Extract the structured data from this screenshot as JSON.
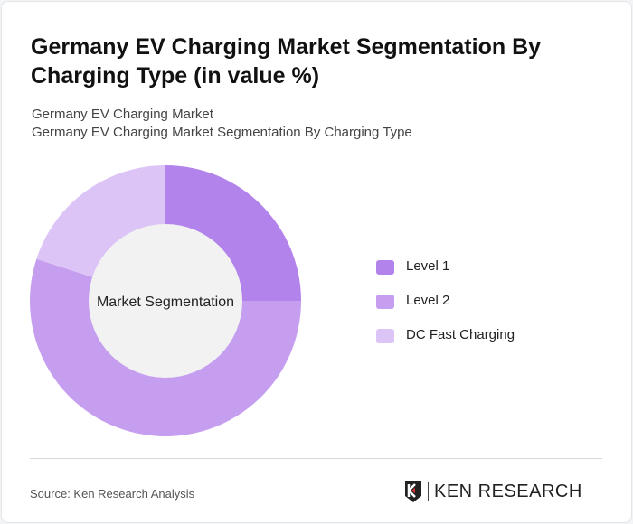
{
  "title": "Germany EV Charging Market Segmentation By Charging Type (in value %)",
  "subtitle1": "Germany EV Charging Market",
  "subtitle2": "Germany EV Charging Market Segmentation By Charging Type",
  "source": "Source: Ken Research Analysis",
  "logo_text": "KEN RESEARCH",
  "chart_data": {
    "type": "pie",
    "variant": "donut",
    "center_label": "Market Segmentation",
    "categories": [
      "Level 1",
      "Level 2",
      "DC Fast Charging"
    ],
    "values": [
      25,
      55,
      20
    ],
    "colors": [
      "#b383ec",
      "#c69ef0",
      "#dcc4f6"
    ],
    "legend": "right"
  }
}
